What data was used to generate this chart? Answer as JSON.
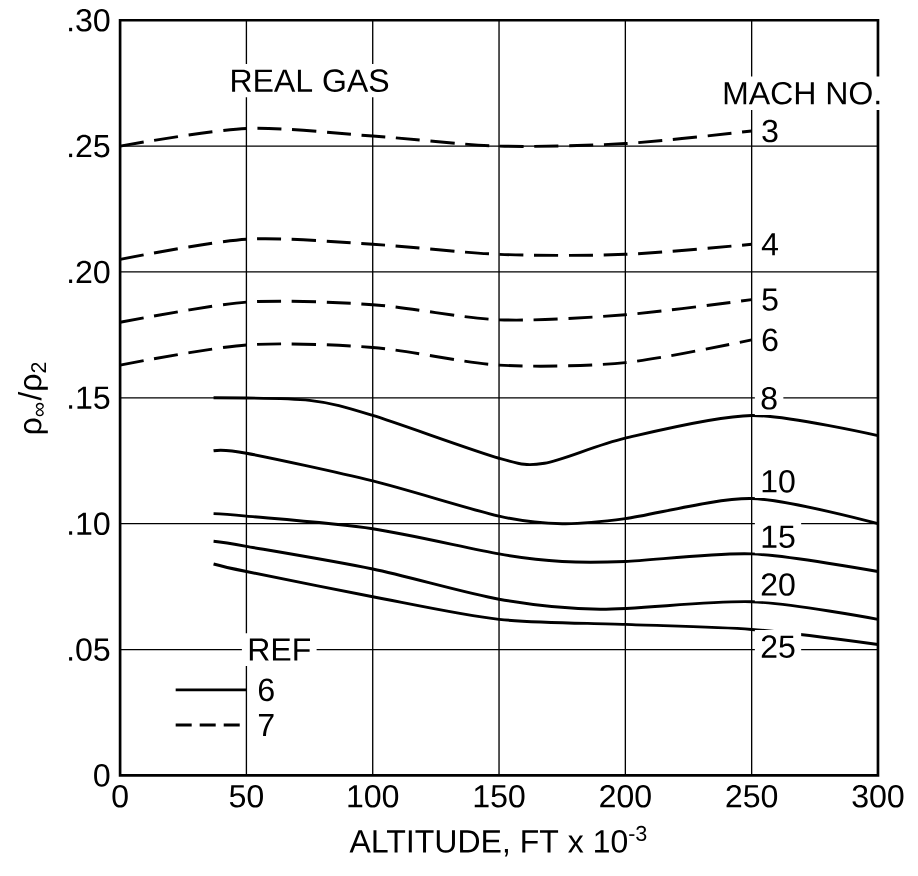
{
  "chart_data": {
    "type": "line",
    "xlabel": "ALTITUDE, FT x 10$^{-3}$",
    "ylabel": "ρ$_{∞}$/ρ$_{2}$",
    "legend_title": "REF",
    "annotations": [
      "REAL GAS",
      "MACH NO.",
      "6",
      "7"
    ],
    "xlim": [
      0,
      300
    ],
    "ylim": [
      0,
      0.3
    ],
    "xticks": [
      0,
      50,
      100,
      150,
      200,
      250,
      300
    ],
    "yticks": [
      {
        "value": 0,
        "label": "0"
      },
      {
        "value": 0.05,
        "label": ".05"
      },
      {
        "value": 0.1,
        "label": ".10"
      },
      {
        "value": 0.15,
        "label": ".15"
      },
      {
        "value": 0.2,
        "label": ".20"
      },
      {
        "value": 0.25,
        "label": ".25"
      },
      {
        "value": 0.3,
        "label": ".30"
      }
    ],
    "grid": true,
    "marker": "none",
    "color": "#000000",
    "series": [
      {
        "name": "3",
        "line_style": "dashed",
        "x": [
          0,
          50,
          100,
          150,
          200,
          250
        ],
        "values": [
          0.25,
          0.257,
          0.254,
          0.25,
          0.251,
          0.256
        ]
      },
      {
        "name": "4",
        "line_style": "dashed",
        "x": [
          0,
          50,
          100,
          150,
          200,
          250
        ],
        "values": [
          0.205,
          0.213,
          0.211,
          0.207,
          0.207,
          0.211
        ]
      },
      {
        "name": "5",
        "line_style": "dashed",
        "x": [
          0,
          50,
          100,
          150,
          200,
          250
        ],
        "values": [
          0.18,
          0.188,
          0.187,
          0.181,
          0.183,
          0.189
        ]
      },
      {
        "name": "6",
        "line_style": "dashed",
        "x": [
          0,
          50,
          100,
          150,
          200,
          250
        ],
        "values": [
          0.163,
          0.171,
          0.17,
          0.163,
          0.164,
          0.173
        ]
      },
      {
        "name": "8",
        "line_style": "solid",
        "x": [
          37,
          75,
          100,
          150,
          168,
          200,
          250,
          300
        ],
        "values": [
          0.15,
          0.149,
          0.143,
          0.126,
          0.124,
          0.134,
          0.143,
          0.135
        ]
      },
      {
        "name": "10",
        "line_style": "solid",
        "x": [
          37,
          50,
          100,
          150,
          175,
          200,
          250,
          300
        ],
        "values": [
          0.129,
          0.128,
          0.117,
          0.103,
          0.1,
          0.102,
          0.11,
          0.1
        ]
      },
      {
        "name": "15",
        "line_style": "solid",
        "x": [
          37,
          50,
          100,
          150,
          175,
          200,
          250,
          300
        ],
        "values": [
          0.104,
          0.103,
          0.098,
          0.088,
          0.085,
          0.085,
          0.088,
          0.081
        ]
      },
      {
        "name": "20",
        "line_style": "solid",
        "x": [
          37,
          50,
          100,
          150,
          190,
          250,
          300
        ],
        "values": [
          0.093,
          0.091,
          0.082,
          0.07,
          0.066,
          0.069,
          0.062
        ]
      },
      {
        "name": "25",
        "line_style": "solid",
        "x": [
          37,
          50,
          100,
          150,
          200,
          250,
          300
        ],
        "values": [
          0.084,
          0.081,
          0.071,
          0.062,
          0.06,
          0.058,
          0.052
        ]
      }
    ]
  }
}
